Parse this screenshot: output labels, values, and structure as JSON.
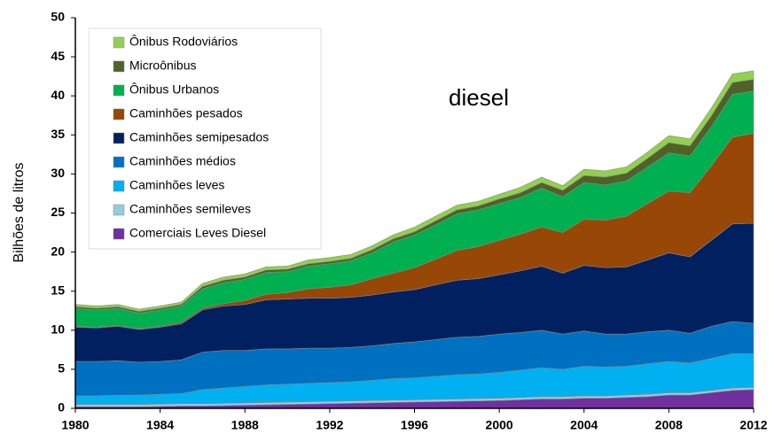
{
  "chart_data": {
    "type": "stacked_area",
    "annotation": "diesel",
    "y_label": "Bilhões de litros",
    "x": [
      1980,
      1981,
      1982,
      1983,
      1984,
      1985,
      1986,
      1987,
      1988,
      1989,
      1990,
      1991,
      1992,
      1993,
      1994,
      1995,
      1996,
      1997,
      1998,
      1999,
      2000,
      2001,
      2002,
      2003,
      2004,
      2005,
      2006,
      2007,
      2008,
      2009,
      2010,
      2011,
      2012
    ],
    "xlim": [
      1980,
      2012
    ],
    "xticks": [
      1980,
      1984,
      1988,
      1992,
      1996,
      2000,
      2004,
      2008,
      2012
    ],
    "ylim": [
      0,
      50
    ],
    "yticks": [
      0,
      5,
      10,
      15,
      20,
      25,
      30,
      35,
      40,
      45,
      50
    ],
    "legend": "upper left",
    "series": [
      {
        "name": "Comerciais Leves Diesel",
        "color": "#7030a0",
        "values": [
          0.2,
          0.2,
          0.2,
          0.2,
          0.25,
          0.3,
          0.3,
          0.35,
          0.4,
          0.45,
          0.5,
          0.55,
          0.6,
          0.65,
          0.7,
          0.75,
          0.8,
          0.85,
          0.9,
          0.95,
          1.0,
          1.1,
          1.2,
          1.2,
          1.3,
          1.3,
          1.4,
          1.5,
          1.7,
          1.7,
          2.0,
          2.3,
          2.4
        ]
      },
      {
        "name": "Caminhões semileves",
        "color": "#93cddd",
        "values": [
          0.3,
          0.3,
          0.3,
          0.3,
          0.3,
          0.3,
          0.3,
          0.3,
          0.3,
          0.3,
          0.3,
          0.3,
          0.3,
          0.3,
          0.3,
          0.3,
          0.3,
          0.3,
          0.3,
          0.3,
          0.3,
          0.3,
          0.3,
          0.3,
          0.3,
          0.3,
          0.3,
          0.3,
          0.3,
          0.3,
          0.3,
          0.3,
          0.3
        ]
      },
      {
        "name": "Caminhões leves",
        "color": "#00b0f0",
        "values": [
          1.1,
          1.1,
          1.2,
          1.2,
          1.25,
          1.3,
          1.8,
          1.95,
          2.1,
          2.25,
          2.3,
          2.35,
          2.4,
          2.45,
          2.6,
          2.75,
          2.8,
          2.95,
          3.1,
          3.15,
          3.3,
          3.5,
          3.7,
          3.5,
          3.8,
          3.7,
          3.7,
          3.9,
          4.0,
          3.8,
          4.1,
          4.4,
          4.3
        ]
      },
      {
        "name": "Caminhões médios",
        "color": "#0070c0",
        "values": [
          4.4,
          4.4,
          4.4,
          4.2,
          4.2,
          4.3,
          4.8,
          4.8,
          4.6,
          4.6,
          4.5,
          4.5,
          4.4,
          4.4,
          4.4,
          4.5,
          4.6,
          4.7,
          4.8,
          4.8,
          4.9,
          4.8,
          4.8,
          4.5,
          4.5,
          4.2,
          4.1,
          4.1,
          4.0,
          3.8,
          4.1,
          4.1,
          3.9
        ]
      },
      {
        "name": "Caminhões semipesados",
        "color": "#002060",
        "values": [
          4.4,
          4.3,
          4.4,
          4.2,
          4.4,
          4.6,
          5.4,
          5.7,
          5.9,
          6.3,
          6.4,
          6.4,
          6.4,
          6.4,
          6.5,
          6.6,
          6.7,
          7.0,
          7.3,
          7.4,
          7.6,
          7.9,
          8.2,
          7.8,
          8.4,
          8.5,
          8.6,
          9.2,
          9.9,
          9.8,
          11.0,
          12.5,
          12.8
        ]
      },
      {
        "name": "Caminhões pesados",
        "color": "#974706",
        "values": [
          0.1,
          0.1,
          0.1,
          0.1,
          0.1,
          0.2,
          0.2,
          0.3,
          0.5,
          0.7,
          0.8,
          1.2,
          1.4,
          1.6,
          2.1,
          2.4,
          2.8,
          3.3,
          3.8,
          4.1,
          4.4,
          4.7,
          5.0,
          5.2,
          5.9,
          6.1,
          6.5,
          7.2,
          7.9,
          8.2,
          9.5,
          11.1,
          11.5
        ]
      },
      {
        "name": "Ônibus Urbanos",
        "color": "#00b050",
        "values": [
          2.3,
          2.2,
          2.2,
          2.0,
          2.1,
          2.1,
          2.5,
          2.7,
          2.7,
          2.8,
          2.7,
          2.9,
          3.0,
          3.1,
          3.3,
          4.0,
          4.2,
          4.4,
          4.7,
          4.7,
          4.7,
          4.7,
          5.0,
          4.6,
          4.7,
          4.5,
          4.5,
          4.7,
          4.9,
          4.7,
          5.0,
          5.5,
          5.4
        ]
      },
      {
        "name": "Microônibus",
        "color": "#4f6228",
        "values": [
          0.2,
          0.2,
          0.2,
          0.2,
          0.2,
          0.2,
          0.3,
          0.3,
          0.3,
          0.3,
          0.3,
          0.3,
          0.3,
          0.3,
          0.4,
          0.4,
          0.4,
          0.5,
          0.5,
          0.5,
          0.6,
          0.6,
          0.7,
          0.8,
          0.9,
          1.0,
          1.0,
          1.1,
          1.3,
          1.3,
          1.4,
          1.5,
          1.5
        ]
      },
      {
        "name": "Ônibus Rodoviários",
        "color": "#92d050",
        "values": [
          0.3,
          0.3,
          0.3,
          0.3,
          0.3,
          0.3,
          0.4,
          0.4,
          0.4,
          0.4,
          0.4,
          0.5,
          0.5,
          0.5,
          0.5,
          0.5,
          0.6,
          0.6,
          0.6,
          0.6,
          0.6,
          0.7,
          0.7,
          0.6,
          0.8,
          0.8,
          0.8,
          0.8,
          0.9,
          0.9,
          1.0,
          1.1,
          1.1
        ]
      }
    ]
  }
}
